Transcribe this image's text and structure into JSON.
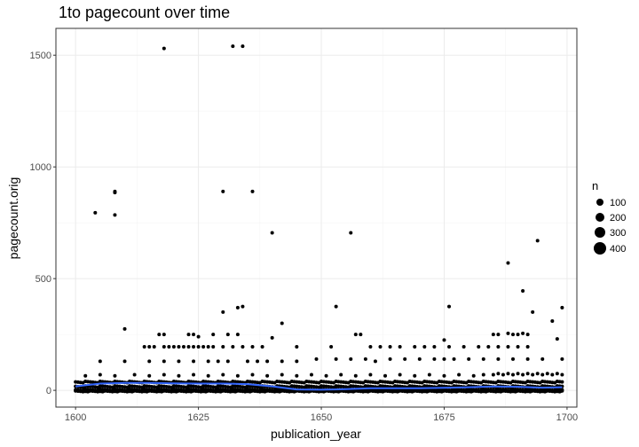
{
  "chart_data": {
    "type": "scatter",
    "title": "1to pagecount over time",
    "xlabel": "publication_year",
    "ylabel": "pagecount.orig",
    "xlim": [
      1596,
      1702
    ],
    "ylim": [
      -75,
      1620
    ],
    "xticks": [
      1600,
      1625,
      1650,
      1675,
      1700
    ],
    "yticks": [
      0,
      500,
      1000,
      1500
    ],
    "grid": true,
    "legend": {
      "title": "n",
      "placement": "right",
      "entries": [
        {
          "label": "100",
          "value": 100
        },
        {
          "label": "200",
          "value": 200
        },
        {
          "label": "300",
          "value": 300
        },
        {
          "label": "400",
          "value": 400
        }
      ]
    },
    "colors": {
      "points": "#000000",
      "smooth": "#3366ff",
      "grid": "#ebebeb",
      "border": "#333333"
    },
    "points": [
      {
        "x": 1618,
        "y": 1530
      },
      {
        "x": 1632,
        "y": 1540
      },
      {
        "x": 1634,
        "y": 1540
      },
      {
        "x": 1604,
        "y": 795
      },
      {
        "x": 1608,
        "y": 890
      },
      {
        "x": 1608,
        "y": 885
      },
      {
        "x": 1608,
        "y": 785
      },
      {
        "x": 1630,
        "y": 890
      },
      {
        "x": 1636,
        "y": 890
      },
      {
        "x": 1640,
        "y": 705
      },
      {
        "x": 1656,
        "y": 705
      },
      {
        "x": 1694,
        "y": 670
      },
      {
        "x": 1688,
        "y": 570
      },
      {
        "x": 1691,
        "y": 445
      },
      {
        "x": 1630,
        "y": 350
      },
      {
        "x": 1633,
        "y": 370
      },
      {
        "x": 1634,
        "y": 375
      },
      {
        "x": 1653,
        "y": 375
      },
      {
        "x": 1676,
        "y": 375
      },
      {
        "x": 1699,
        "y": 370
      },
      {
        "x": 1693,
        "y": 350
      },
      {
        "x": 1610,
        "y": 275
      },
      {
        "x": 1642,
        "y": 300
      },
      {
        "x": 1697,
        "y": 310
      },
      {
        "x": 1617,
        "y": 250
      },
      {
        "x": 1618,
        "y": 250
      },
      {
        "x": 1623,
        "y": 250
      },
      {
        "x": 1624,
        "y": 250
      },
      {
        "x": 1625,
        "y": 240
      },
      {
        "x": 1628,
        "y": 250
      },
      {
        "x": 1631,
        "y": 250
      },
      {
        "x": 1633,
        "y": 250
      },
      {
        "x": 1640,
        "y": 235
      },
      {
        "x": 1657,
        "y": 250
      },
      {
        "x": 1658,
        "y": 250
      },
      {
        "x": 1675,
        "y": 225
      },
      {
        "x": 1685,
        "y": 250
      },
      {
        "x": 1686,
        "y": 250
      },
      {
        "x": 1688,
        "y": 255
      },
      {
        "x": 1689,
        "y": 250
      },
      {
        "x": 1690,
        "y": 250
      },
      {
        "x": 1691,
        "y": 255
      },
      {
        "x": 1692,
        "y": 250
      },
      {
        "x": 1698,
        "y": 230
      },
      {
        "x": 1614,
        "y": 195
      },
      {
        "x": 1615,
        "y": 195
      },
      {
        "x": 1616,
        "y": 195
      },
      {
        "x": 1618,
        "y": 195
      },
      {
        "x": 1619,
        "y": 195
      },
      {
        "x": 1620,
        "y": 195
      },
      {
        "x": 1621,
        "y": 195
      },
      {
        "x": 1622,
        "y": 195
      },
      {
        "x": 1623,
        "y": 195
      },
      {
        "x": 1624,
        "y": 195
      },
      {
        "x": 1625,
        "y": 195
      },
      {
        "x": 1626,
        "y": 195
      },
      {
        "x": 1627,
        "y": 195
      },
      {
        "x": 1628,
        "y": 195
      },
      {
        "x": 1630,
        "y": 195
      },
      {
        "x": 1632,
        "y": 195
      },
      {
        "x": 1634,
        "y": 195
      },
      {
        "x": 1636,
        "y": 195
      },
      {
        "x": 1638,
        "y": 195
      },
      {
        "x": 1645,
        "y": 195
      },
      {
        "x": 1652,
        "y": 195
      },
      {
        "x": 1660,
        "y": 195
      },
      {
        "x": 1662,
        "y": 195
      },
      {
        "x": 1664,
        "y": 195
      },
      {
        "x": 1666,
        "y": 195
      },
      {
        "x": 1669,
        "y": 195
      },
      {
        "x": 1671,
        "y": 195
      },
      {
        "x": 1673,
        "y": 195
      },
      {
        "x": 1676,
        "y": 195
      },
      {
        "x": 1679,
        "y": 195
      },
      {
        "x": 1682,
        "y": 195
      },
      {
        "x": 1684,
        "y": 195
      },
      {
        "x": 1686,
        "y": 195
      },
      {
        "x": 1688,
        "y": 195
      },
      {
        "x": 1690,
        "y": 195
      },
      {
        "x": 1692,
        "y": 195
      },
      {
        "x": 1605,
        "y": 130
      },
      {
        "x": 1610,
        "y": 130
      },
      {
        "x": 1615,
        "y": 130
      },
      {
        "x": 1618,
        "y": 130
      },
      {
        "x": 1621,
        "y": 130
      },
      {
        "x": 1624,
        "y": 130
      },
      {
        "x": 1627,
        "y": 130
      },
      {
        "x": 1629,
        "y": 130
      },
      {
        "x": 1631,
        "y": 130
      },
      {
        "x": 1635,
        "y": 130
      },
      {
        "x": 1637,
        "y": 130
      },
      {
        "x": 1639,
        "y": 130
      },
      {
        "x": 1642,
        "y": 130
      },
      {
        "x": 1645,
        "y": 130
      },
      {
        "x": 1649,
        "y": 140
      },
      {
        "x": 1653,
        "y": 140
      },
      {
        "x": 1656,
        "y": 140
      },
      {
        "x": 1659,
        "y": 140
      },
      {
        "x": 1661,
        "y": 130
      },
      {
        "x": 1664,
        "y": 140
      },
      {
        "x": 1667,
        "y": 140
      },
      {
        "x": 1670,
        "y": 140
      },
      {
        "x": 1673,
        "y": 140
      },
      {
        "x": 1675,
        "y": 140
      },
      {
        "x": 1677,
        "y": 140
      },
      {
        "x": 1680,
        "y": 140
      },
      {
        "x": 1683,
        "y": 140
      },
      {
        "x": 1686,
        "y": 140
      },
      {
        "x": 1689,
        "y": 140
      },
      {
        "x": 1692,
        "y": 140
      },
      {
        "x": 1695,
        "y": 140
      },
      {
        "x": 1699,
        "y": 140
      },
      {
        "x": 1602,
        "y": 65
      },
      {
        "x": 1605,
        "y": 70
      },
      {
        "x": 1608,
        "y": 65
      },
      {
        "x": 1612,
        "y": 70
      },
      {
        "x": 1615,
        "y": 65
      },
      {
        "x": 1618,
        "y": 70
      },
      {
        "x": 1621,
        "y": 65
      },
      {
        "x": 1624,
        "y": 70
      },
      {
        "x": 1627,
        "y": 65
      },
      {
        "x": 1630,
        "y": 70
      },
      {
        "x": 1633,
        "y": 65
      },
      {
        "x": 1636,
        "y": 70
      },
      {
        "x": 1639,
        "y": 65
      },
      {
        "x": 1642,
        "y": 70
      },
      {
        "x": 1645,
        "y": 65
      },
      {
        "x": 1648,
        "y": 70
      },
      {
        "x": 1651,
        "y": 65
      },
      {
        "x": 1654,
        "y": 70
      },
      {
        "x": 1657,
        "y": 65
      },
      {
        "x": 1660,
        "y": 70
      },
      {
        "x": 1663,
        "y": 65
      },
      {
        "x": 1666,
        "y": 70
      },
      {
        "x": 1669,
        "y": 65
      },
      {
        "x": 1672,
        "y": 70
      },
      {
        "x": 1675,
        "y": 65
      },
      {
        "x": 1678,
        "y": 70
      },
      {
        "x": 1681,
        "y": 65
      },
      {
        "x": 1683,
        "y": 70
      },
      {
        "x": 1685,
        "y": 70
      },
      {
        "x": 1686,
        "y": 75
      },
      {
        "x": 1687,
        "y": 70
      },
      {
        "x": 1688,
        "y": 75
      },
      {
        "x": 1689,
        "y": 70
      },
      {
        "x": 1690,
        "y": 75
      },
      {
        "x": 1691,
        "y": 70
      },
      {
        "x": 1692,
        "y": 75
      },
      {
        "x": 1693,
        "y": 70
      },
      {
        "x": 1694,
        "y": 75
      },
      {
        "x": 1695,
        "y": 70
      },
      {
        "x": 1696,
        "y": 75
      },
      {
        "x": 1697,
        "y": 70
      },
      {
        "x": 1698,
        "y": 75
      },
      {
        "x": 1699,
        "y": 70
      }
    ],
    "dense_bands": [
      {
        "y": 40,
        "x_from": 1600,
        "x_to": 1699
      },
      {
        "y": 20,
        "x_from": 1600,
        "x_to": 1699
      },
      {
        "y": 5,
        "x_from": 1600,
        "x_to": 1699
      },
      {
        "y": 0,
        "x_from": 1600,
        "x_to": 1699
      }
    ],
    "smooth_line": [
      {
        "x": 1600,
        "y": 18
      },
      {
        "x": 1605,
        "y": 30
      },
      {
        "x": 1610,
        "y": 33
      },
      {
        "x": 1615,
        "y": 33
      },
      {
        "x": 1620,
        "y": 31
      },
      {
        "x": 1625,
        "y": 30
      },
      {
        "x": 1630,
        "y": 30
      },
      {
        "x": 1635,
        "y": 28
      },
      {
        "x": 1640,
        "y": 18
      },
      {
        "x": 1645,
        "y": 4
      },
      {
        "x": 1650,
        "y": 3
      },
      {
        "x": 1655,
        "y": 5
      },
      {
        "x": 1660,
        "y": 9
      },
      {
        "x": 1665,
        "y": 9
      },
      {
        "x": 1670,
        "y": 9
      },
      {
        "x": 1675,
        "y": 11
      },
      {
        "x": 1680,
        "y": 14
      },
      {
        "x": 1685,
        "y": 17
      },
      {
        "x": 1690,
        "y": 16
      },
      {
        "x": 1695,
        "y": 12
      },
      {
        "x": 1699,
        "y": 14
      }
    ]
  }
}
